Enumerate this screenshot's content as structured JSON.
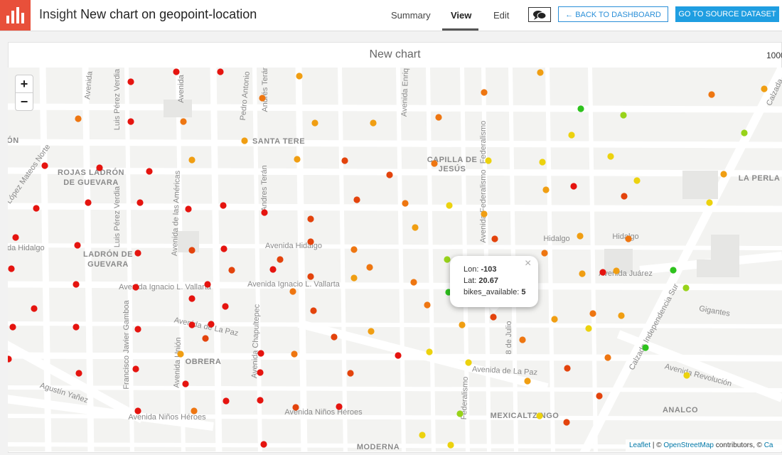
{
  "header": {
    "section": "Insight",
    "title": "New chart on geopoint-location",
    "tabs": [
      "Summary",
      "View",
      "Edit"
    ],
    "buttons": {
      "back": "BACK TO DASHBOARD",
      "source": "GO TO SOURCE DATASET"
    }
  },
  "chart": {
    "title": "New chart",
    "scale_label": "1000"
  },
  "map": {
    "zoom_in": "+",
    "zoom_out": "−",
    "labels": [
      "CIÓN",
      "ROJAS LADRÓN",
      "DE GUEVARA",
      "SANTA TERE",
      "CAPILLA DE",
      "JESÚS",
      "LA PERLA",
      "LADRÓN DE",
      "GUEVARA",
      "Avenida Hidalgo",
      "Hidalgo",
      "Hidalgo",
      "Avenida Juárez",
      "Avenida Ignacio L. Vallarta",
      "Avenida Ignacio L. Vallarta",
      "nida Hidalgo",
      "Avenida de La Paz",
      "OBRERA",
      "Avenida de La Paz",
      "Agustín Yañez",
      "Avenida Niños Héroes",
      "Avenida Niños Héroes",
      "MEXICALTZINGO",
      "ANALCO",
      "Avenida Revolución",
      "Gigantes",
      "MODERNA",
      "Avenida",
      "Luis Pérez Verdia",
      "Avenida",
      "Pedro Antonio",
      "Andrés Terán",
      "Avenida Enriq",
      "Federalismo",
      "Avenida Federalismo",
      "Avenida de las Américas",
      "Andres Terán",
      "Luis Pérez Verdia",
      "Avenida Chapultepec",
      "Francisco Javier Gamboa",
      "Avenida Unión",
      "8 de Julio",
      "Calzada Independencia Sur",
      "Calzada",
      "López Mateos Norte",
      "Federalismo"
    ],
    "popup": {
      "close": "×",
      "fields": [
        {
          "label": "Lon:",
          "value": -103
        },
        {
          "label": "Lat:",
          "value": 20.67
        },
        {
          "label": "bikes_available:",
          "value": 5
        }
      ]
    },
    "attribution": {
      "leaflet": "Leaflet",
      "sep": "| ©",
      "osm": "OpenStreetMap",
      "rest": "contributors, ©",
      "cut": "Ca"
    }
  }
}
